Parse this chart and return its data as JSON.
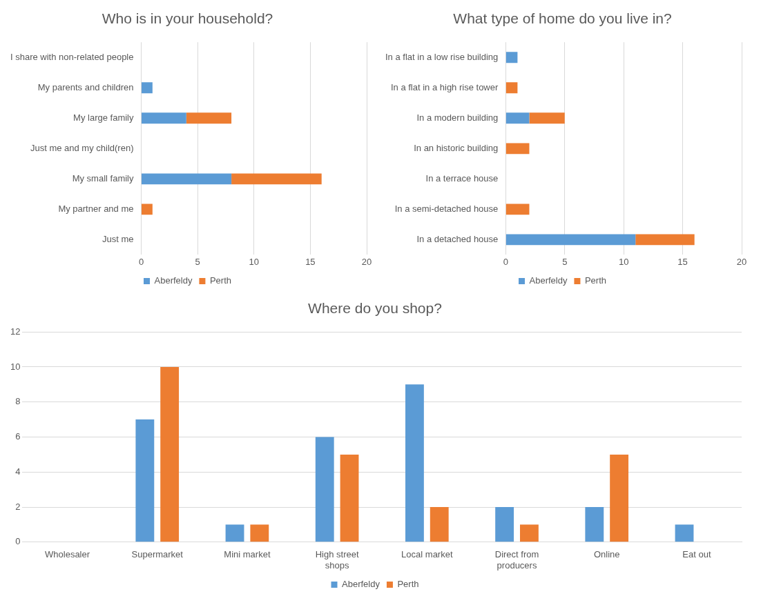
{
  "chart_data": [
    {
      "type": "bar",
      "title": "Who is in your household?",
      "orientation": "horizontal",
      "stacked": true,
      "categories": [
        "I share with non-related people",
        "My parents and children",
        "My large family",
        "Just me and my child(ren)",
        "My small family",
        "My partner and me",
        "Just me"
      ],
      "series": [
        {
          "name": "Aberfeldy",
          "color": "#5b9bd5",
          "values": [
            0,
            1,
            4,
            0,
            8,
            0,
            0
          ]
        },
        {
          "name": "Perth",
          "color": "#ed7d31",
          "values": [
            0,
            0,
            4,
            0,
            8,
            1,
            0
          ]
        }
      ],
      "xlim": [
        0,
        20
      ],
      "xticks": [
        0,
        5,
        10,
        15,
        20
      ],
      "grid": "x",
      "legend": "bottom"
    },
    {
      "type": "bar",
      "title": "What type of home do you live in?",
      "orientation": "horizontal",
      "stacked": true,
      "categories": [
        "In a flat in a low rise building",
        "In a flat in a high rise tower",
        "In a modern building",
        "In an historic building",
        "In a terrace house",
        "In a semi-detached house",
        "In a detached house"
      ],
      "series": [
        {
          "name": "Aberfeldy",
          "color": "#5b9bd5",
          "values": [
            1,
            0,
            2,
            0,
            0,
            0,
            11
          ]
        },
        {
          "name": "Perth",
          "color": "#ed7d31",
          "values": [
            0,
            1,
            3,
            2,
            0,
            2,
            5
          ]
        }
      ],
      "xlim": [
        0,
        20
      ],
      "xticks": [
        0,
        5,
        10,
        15,
        20
      ],
      "grid": "x",
      "legend": "bottom"
    },
    {
      "type": "bar",
      "title": "Where do you shop?",
      "categories": [
        "Wholesaler",
        "Supermarket",
        "Mini market",
        "High street shops",
        "Local market",
        "Direct from producers",
        "Online",
        "Eat out"
      ],
      "series": [
        {
          "name": "Aberfeldy",
          "color": "#5b9bd5",
          "values": [
            0,
            7,
            1,
            6,
            9,
            2,
            2,
            1
          ]
        },
        {
          "name": "Perth",
          "color": "#ed7d31",
          "values": [
            0,
            10,
            1,
            5,
            2,
            1,
            5,
            0
          ]
        }
      ],
      "ylim": [
        0,
        12
      ],
      "yticks": [
        0,
        2,
        4,
        6,
        8,
        10,
        12
      ],
      "grid": "y",
      "legend": "bottom"
    }
  ]
}
